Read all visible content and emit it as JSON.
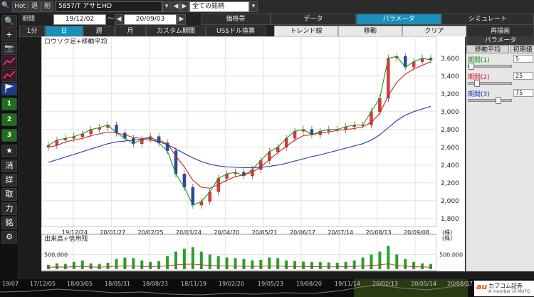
{
  "toolbar": {
    "hot_label": "Hot",
    "back_label": "退",
    "delete_label": "削",
    "symbol_value": "5857/T アサヒHD",
    "period_label": "期間",
    "start_date": "19/12/02",
    "tilde": "～",
    "end_date": "20/09/03",
    "stock_group": "全ての銘柄",
    "price_tab": "価格帯",
    "data_tab": "データ",
    "param_tab": "パラメータ",
    "simulate_tab": "シミュレート"
  },
  "period_tabs": [
    {
      "label": "1分"
    },
    {
      "label": "日"
    },
    {
      "label": "週"
    },
    {
      "label": "月"
    },
    {
      "label": "カスタム期間"
    },
    {
      "label": "US$ドル換算"
    }
  ],
  "action_buttons": {
    "trend": "トレンド線",
    "move": "移動",
    "clear": "クリア",
    "redraw": "再描画"
  },
  "left_tools": [
    {
      "label": "🔍",
      "name": "zoom-icon"
    },
    {
      "label": "+",
      "name": "crosshair-icon"
    },
    {
      "label": "📷",
      "name": "camera-icon"
    },
    {
      "label": "",
      "name": "line-chart-icon"
    },
    {
      "label": "",
      "name": "candle-chart-icon"
    },
    {
      "label": "",
      "name": "flag-icon"
    },
    {
      "label": "1",
      "name": "preset-1-button"
    },
    {
      "label": "2",
      "name": "preset-2-button"
    },
    {
      "label": "3",
      "name": "preset-3-button"
    },
    {
      "label": "★",
      "name": "star-icon"
    },
    {
      "label": "消",
      "name": "erase-button"
    },
    {
      "label": "詳",
      "name": "detail-button"
    },
    {
      "label": "取",
      "name": "trade-button"
    },
    {
      "label": "力",
      "name": "power-button"
    },
    {
      "label": "銘",
      "name": "stock-button"
    },
    {
      "label": "⚙",
      "name": "gear-icon"
    }
  ],
  "side_panel": {
    "header": "パラメータ",
    "tab_ma": "移動平均",
    "tab_init": "初期値",
    "params": [
      {
        "label": "期間(1)",
        "value": "5",
        "color": "#1a8f1a",
        "level": 0.0
      },
      {
        "label": "期間(2)",
        "value": "25",
        "color": "#cc2222",
        "level": 0.15
      },
      {
        "label": "期間(3)",
        "value": "75",
        "color": "#2233aa",
        "level": 0.7
      }
    ]
  },
  "chart_data": {
    "type": "line",
    "title": "ロウソク足+移動平均",
    "yunit": "(株)",
    "volume_title": "出来高+信用残",
    "x_ticks": [
      "19/12/24",
      "20/01/27",
      "20/02/25",
      "20/03/24",
      "20/04/20",
      "20/05/21",
      "20/06/17",
      "20/07/14",
      "20/08/13",
      "20/09/08"
    ],
    "y_ticks": [
      1800,
      2000,
      2200,
      2400,
      2600,
      2800,
      3000,
      3200,
      3400,
      3600
    ],
    "ylim": [
      1750,
      3750
    ],
    "volume_tick": "500,000",
    "volume_ylim": [
      0,
      900000
    ],
    "series": [
      {
        "name": "期間(1)",
        "color": "#1a9a1a",
        "values": [
          2620,
          2680,
          2700,
          2720,
          2750,
          2800,
          2820,
          2850,
          2760,
          2700,
          2640,
          2690,
          2720,
          2650,
          2560,
          2300,
          2150,
          1950,
          1990,
          2100,
          2250,
          2300,
          2320,
          2280,
          2350,
          2450,
          2550,
          2600,
          2700,
          2780,
          2800,
          2740,
          2780,
          2800,
          2800,
          2830,
          2850,
          2850,
          3000,
          3150,
          3600,
          3620,
          3500,
          3560,
          3600,
          3580
        ]
      },
      {
        "name": "期間(2)",
        "color": "#cc2222",
        "values": [
          2600,
          2620,
          2660,
          2680,
          2700,
          2730,
          2750,
          2770,
          2760,
          2740,
          2710,
          2700,
          2700,
          2680,
          2640,
          2500,
          2380,
          2230,
          2150,
          2140,
          2180,
          2230,
          2270,
          2290,
          2320,
          2380,
          2460,
          2540,
          2610,
          2680,
          2730,
          2740,
          2760,
          2770,
          2790,
          2800,
          2810,
          2830,
          2880,
          2980,
          3180,
          3330,
          3420,
          3480,
          3520,
          3560
        ]
      },
      {
        "name": "期間(3)",
        "color": "#2233aa",
        "values": [
          2430,
          2460,
          2490,
          2520,
          2550,
          2580,
          2610,
          2640,
          2660,
          2670,
          2680,
          2690,
          2680,
          2660,
          2630,
          2580,
          2530,
          2480,
          2440,
          2410,
          2390,
          2380,
          2375,
          2370,
          2370,
          2375,
          2385,
          2400,
          2420,
          2445,
          2470,
          2495,
          2515,
          2540,
          2565,
          2590,
          2615,
          2640,
          2680,
          2740,
          2820,
          2900,
          2960,
          3000,
          3030,
          3060
        ]
      }
    ],
    "volume_values": [
      150000,
      200000,
      180000,
      250000,
      300000,
      200000,
      180000,
      220000,
      350000,
      400000,
      380000,
      300000,
      250000,
      280000,
      450000,
      600000,
      700000,
      750000,
      600000,
      500000,
      450000,
      400000,
      380000,
      350000,
      300000,
      320000,
      400000,
      380000,
      300000,
      280000,
      260000,
      250000,
      240000,
      230000,
      220000,
      250000,
      300000,
      400000,
      500000,
      600000,
      800000,
      500000,
      350000,
      250000,
      200000,
      180000
    ]
  },
  "bottom_bar": {
    "dates": [
      "19/07",
      "17/12/05",
      "18/03/05",
      "18/05/31",
      "18/08/23",
      "18/11/19",
      "19/02/20",
      "19/05/23",
      "19/08/20",
      "19/11/14",
      "20/02/13",
      "20/05/14",
      "20/08/07"
    ]
  },
  "brand": {
    "logo": "au",
    "name": "カブコム証券",
    "sub": "A member of MUFG"
  }
}
